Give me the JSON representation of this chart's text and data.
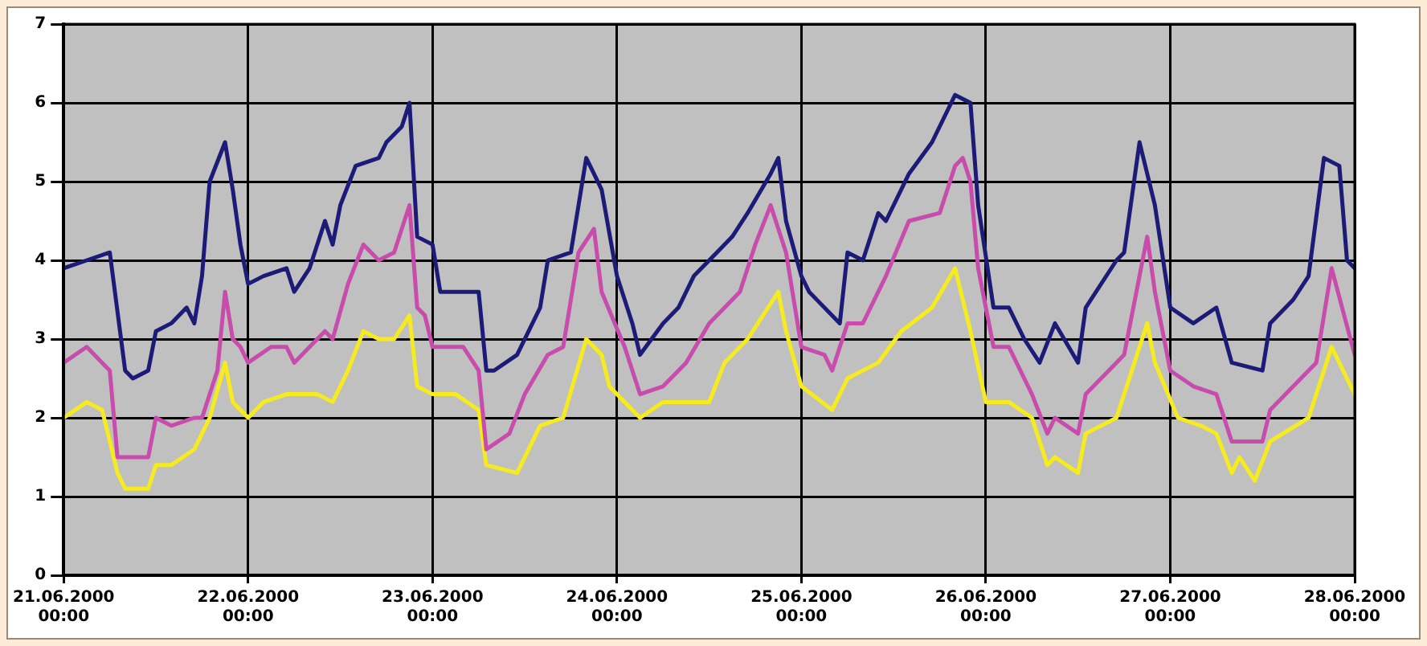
{
  "chart_data": {
    "type": "line",
    "xlim": [
      "2000-06-21T00:00",
      "2000-06-28T00:00"
    ],
    "xticks": [
      {
        "value": "2000-06-21T00:00",
        "label": "21.06.2000 00:00"
      },
      {
        "value": "2000-06-22T00:00",
        "label": "22.06.2000 00:00"
      },
      {
        "value": "2000-06-23T00:00",
        "label": "23.06.2000 00:00"
      },
      {
        "value": "2000-06-24T00:00",
        "label": "24.06.2000 00:00"
      },
      {
        "value": "2000-06-25T00:00",
        "label": "25.06.2000 00:00"
      },
      {
        "value": "2000-06-26T00:00",
        "label": "26.06.2000 00:00"
      },
      {
        "value": "2000-06-27T00:00",
        "label": "27.06.2000 00:00"
      },
      {
        "value": "2000-06-28T00:00",
        "label": "28.06.2000 00:00"
      }
    ],
    "ylim": [
      0,
      7
    ],
    "yticks": [
      0,
      1,
      2,
      3,
      4,
      5,
      6,
      7
    ],
    "grid": true,
    "series": [
      {
        "color": "#1c1c78",
        "x": [
          "2000-06-21T00:00",
          "2000-06-21T03:00",
          "2000-06-21T06:00",
          "2000-06-21T08:00",
          "2000-06-21T09:00",
          "2000-06-21T11:00",
          "2000-06-21T12:00",
          "2000-06-21T14:00",
          "2000-06-21T16:00",
          "2000-06-21T17:00",
          "2000-06-21T18:00",
          "2000-06-21T19:00",
          "2000-06-21T21:00",
          "2000-06-21T22:00",
          "2000-06-21T23:00",
          "2000-06-22T00:00",
          "2000-06-22T02:00",
          "2000-06-22T05:00",
          "2000-06-22T06:00",
          "2000-06-22T08:00",
          "2000-06-22T10:00",
          "2000-06-22T11:00",
          "2000-06-22T12:00",
          "2000-06-22T14:00",
          "2000-06-22T17:00",
          "2000-06-22T18:00",
          "2000-06-22T20:00",
          "2000-06-22T21:00",
          "2000-06-22T22:00",
          "2000-06-23T00:00",
          "2000-06-23T01:00",
          "2000-06-23T06:00",
          "2000-06-23T07:00",
          "2000-06-23T08:00",
          "2000-06-23T11:00",
          "2000-06-23T14:00",
          "2000-06-23T15:00",
          "2000-06-23T18:00",
          "2000-06-23T20:00",
          "2000-06-23T21:00",
          "2000-06-23T22:00",
          "2000-06-24T00:00",
          "2000-06-24T02:00",
          "2000-06-24T03:00",
          "2000-06-24T06:00",
          "2000-06-24T08:00",
          "2000-06-24T10:00",
          "2000-06-24T13:00",
          "2000-06-24T15:00",
          "2000-06-24T17:00",
          "2000-06-24T20:00",
          "2000-06-24T21:00",
          "2000-06-24T22:00",
          "2000-06-25T00:00",
          "2000-06-25T01:00",
          "2000-06-25T05:00",
          "2000-06-25T06:00",
          "2000-06-25T08:00",
          "2000-06-25T10:00",
          "2000-06-25T11:00",
          "2000-06-25T14:00",
          "2000-06-25T17:00",
          "2000-06-25T20:00",
          "2000-06-25T22:00",
          "2000-06-25T23:00",
          "2000-06-26T01:00",
          "2000-06-26T03:00",
          "2000-06-26T05:00",
          "2000-06-26T07:00",
          "2000-06-26T09:00",
          "2000-06-26T12:00",
          "2000-06-26T13:00",
          "2000-06-26T17:00",
          "2000-06-26T18:00",
          "2000-06-26T20:00",
          "2000-06-26T22:00",
          "2000-06-27T00:00",
          "2000-06-27T03:00",
          "2000-06-27T06:00",
          "2000-06-27T08:00",
          "2000-06-27T12:00",
          "2000-06-27T13:00",
          "2000-06-27T16:00",
          "2000-06-27T18:00",
          "2000-06-27T20:00",
          "2000-06-27T22:00",
          "2000-06-27T23:00",
          "2000-06-28T00:00"
        ],
        "values": [
          3.9,
          4.0,
          4.1,
          2.6,
          2.5,
          2.6,
          3.1,
          3.2,
          3.4,
          3.2,
          3.8,
          5.0,
          5.5,
          4.9,
          4.2,
          3.7,
          3.8,
          3.9,
          3.6,
          3.9,
          4.5,
          4.2,
          4.7,
          5.2,
          5.3,
          5.5,
          5.7,
          6.0,
          4.3,
          4.2,
          3.6,
          3.6,
          2.6,
          2.6,
          2.8,
          3.4,
          4.0,
          4.1,
          5.3,
          5.1,
          4.9,
          3.8,
          3.2,
          2.8,
          3.2,
          3.4,
          3.8,
          4.1,
          4.3,
          4.6,
          5.1,
          5.3,
          4.5,
          3.8,
          3.6,
          3.2,
          4.1,
          4.0,
          4.6,
          4.5,
          5.1,
          5.5,
          6.1,
          6.0,
          4.7,
          3.4,
          3.4,
          3.0,
          2.7,
          3.2,
          2.7,
          3.4,
          4.0,
          4.1,
          5.5,
          4.7,
          3.4,
          3.2,
          3.4,
          2.7,
          2.6,
          3.2,
          3.5,
          3.8,
          5.3,
          5.2,
          4.0,
          3.9
        ]
      },
      {
        "color": "#c84cab",
        "x": [
          "2000-06-21T00:00",
          "2000-06-21T03:00",
          "2000-06-21T05:00",
          "2000-06-21T06:00",
          "2000-06-21T07:00",
          "2000-06-21T09:00",
          "2000-06-21T11:00",
          "2000-06-21T12:00",
          "2000-06-21T14:00",
          "2000-06-21T17:00",
          "2000-06-21T18:00",
          "2000-06-21T20:00",
          "2000-06-21T21:00",
          "2000-06-21T22:00",
          "2000-06-21T23:00",
          "2000-06-22T00:00",
          "2000-06-22T03:00",
          "2000-06-22T05:00",
          "2000-06-22T06:00",
          "2000-06-22T08:00",
          "2000-06-22T10:00",
          "2000-06-22T11:00",
          "2000-06-22T13:00",
          "2000-06-22T15:00",
          "2000-06-22T17:00",
          "2000-06-22T19:00",
          "2000-06-22T21:00",
          "2000-06-22T22:00",
          "2000-06-22T23:00",
          "2000-06-23T00:00",
          "2000-06-23T04:00",
          "2000-06-23T06:00",
          "2000-06-23T07:00",
          "2000-06-23T10:00",
          "2000-06-23T12:00",
          "2000-06-23T15:00",
          "2000-06-23T17:00",
          "2000-06-23T19:00",
          "2000-06-23T21:00",
          "2000-06-23T22:00",
          "2000-06-24T01:00",
          "2000-06-24T03:00",
          "2000-06-24T06:00",
          "2000-06-24T09:00",
          "2000-06-24T12:00",
          "2000-06-24T16:00",
          "2000-06-24T18:00",
          "2000-06-24T20:00",
          "2000-06-24T22:00",
          "2000-06-25T00:00",
          "2000-06-25T03:00",
          "2000-06-25T04:00",
          "2000-06-25T06:00",
          "2000-06-25T08:00",
          "2000-06-25T11:00",
          "2000-06-25T14:00",
          "2000-06-25T18:00",
          "2000-06-25T20:00",
          "2000-06-25T21:00",
          "2000-06-25T22:00",
          "2000-06-25T23:00",
          "2000-06-26T01:00",
          "2000-06-26T03:00",
          "2000-06-26T06:00",
          "2000-06-26T08:00",
          "2000-06-26T09:00",
          "2000-06-26T12:00",
          "2000-06-26T13:00",
          "2000-06-26T16:00",
          "2000-06-26T18:00",
          "2000-06-26T21:00",
          "2000-06-26T22:00",
          "2000-06-27T00:00",
          "2000-06-27T03:00",
          "2000-06-27T06:00",
          "2000-06-27T08:00",
          "2000-06-27T12:00",
          "2000-06-27T13:00",
          "2000-06-27T17:00",
          "2000-06-27T19:00",
          "2000-06-27T21:00",
          "2000-06-28T00:00"
        ],
        "values": [
          2.7,
          2.9,
          2.7,
          2.6,
          1.5,
          1.5,
          1.5,
          2.0,
          1.9,
          2.0,
          2.0,
          2.6,
          3.6,
          3.0,
          2.9,
          2.7,
          2.9,
          2.9,
          2.7,
          2.9,
          3.1,
          3.0,
          3.7,
          4.2,
          4.0,
          4.1,
          4.7,
          3.4,
          3.3,
          2.9,
          2.9,
          2.6,
          1.6,
          1.8,
          2.3,
          2.8,
          2.9,
          4.1,
          4.4,
          3.6,
          2.9,
          2.3,
          2.4,
          2.7,
          3.2,
          3.6,
          4.2,
          4.7,
          4.1,
          2.9,
          2.8,
          2.6,
          3.2,
          3.2,
          3.8,
          4.5,
          4.6,
          5.2,
          5.3,
          5.0,
          3.9,
          2.9,
          2.9,
          2.3,
          1.8,
          2.0,
          1.8,
          2.3,
          2.6,
          2.8,
          4.3,
          3.6,
          2.6,
          2.4,
          2.3,
          1.7,
          1.7,
          2.1,
          2.5,
          2.7,
          3.9,
          2.8
        ]
      },
      {
        "color": "#f5eb1e",
        "x": [
          "2000-06-21T00:00",
          "2000-06-21T03:00",
          "2000-06-21T05:00",
          "2000-06-21T07:00",
          "2000-06-21T08:00",
          "2000-06-21T09:00",
          "2000-06-21T11:00",
          "2000-06-21T12:00",
          "2000-06-21T14:00",
          "2000-06-21T17:00",
          "2000-06-21T19:00",
          "2000-06-21T21:00",
          "2000-06-21T22:00",
          "2000-06-22T00:00",
          "2000-06-22T02:00",
          "2000-06-22T05:00",
          "2000-06-22T09:00",
          "2000-06-22T11:00",
          "2000-06-22T13:00",
          "2000-06-22T15:00",
          "2000-06-22T17:00",
          "2000-06-22T19:00",
          "2000-06-22T21:00",
          "2000-06-22T22:00",
          "2000-06-23T00:00",
          "2000-06-23T03:00",
          "2000-06-23T06:00",
          "2000-06-23T07:00",
          "2000-06-23T11:00",
          "2000-06-23T14:00",
          "2000-06-23T17:00",
          "2000-06-23T20:00",
          "2000-06-23T22:00",
          "2000-06-23T23:00",
          "2000-06-24T03:00",
          "2000-06-24T06:00",
          "2000-06-24T12:00",
          "2000-06-24T14:00",
          "2000-06-24T17:00",
          "2000-06-24T21:00",
          "2000-06-24T22:00",
          "2000-06-25T00:00",
          "2000-06-25T04:00",
          "2000-06-25T06:00",
          "2000-06-25T10:00",
          "2000-06-25T13:00",
          "2000-06-25T17:00",
          "2000-06-25T20:00",
          "2000-06-25T22:00",
          "2000-06-26T00:00",
          "2000-06-26T03:00",
          "2000-06-26T06:00",
          "2000-06-26T08:00",
          "2000-06-26T09:00",
          "2000-06-26T12:00",
          "2000-06-26T13:00",
          "2000-06-26T17:00",
          "2000-06-26T21:00",
          "2000-06-26T22:00",
          "2000-06-27T01:00",
          "2000-06-27T04:00",
          "2000-06-27T06:00",
          "2000-06-27T08:00",
          "2000-06-27T09:00",
          "2000-06-27T11:00",
          "2000-06-27T13:00",
          "2000-06-27T18:00",
          "2000-06-27T21:00",
          "2000-06-28T00:00"
        ],
        "values": [
          2.0,
          2.2,
          2.1,
          1.3,
          1.1,
          1.1,
          1.1,
          1.4,
          1.4,
          1.6,
          2.0,
          2.7,
          2.2,
          2.0,
          2.2,
          2.3,
          2.3,
          2.2,
          2.6,
          3.1,
          3.0,
          3.0,
          3.3,
          2.4,
          2.3,
          2.3,
          2.1,
          1.4,
          1.3,
          1.9,
          2.0,
          3.0,
          2.8,
          2.4,
          2.0,
          2.2,
          2.2,
          2.7,
          3.0,
          3.6,
          3.1,
          2.4,
          2.1,
          2.5,
          2.7,
          3.1,
          3.4,
          3.9,
          3.1,
          2.2,
          2.2,
          2.0,
          1.4,
          1.5,
          1.3,
          1.8,
          2.0,
          3.2,
          2.7,
          2.0,
          1.9,
          1.8,
          1.3,
          1.5,
          1.2,
          1.7,
          2.0,
          2.9,
          2.3
        ]
      }
    ]
  }
}
